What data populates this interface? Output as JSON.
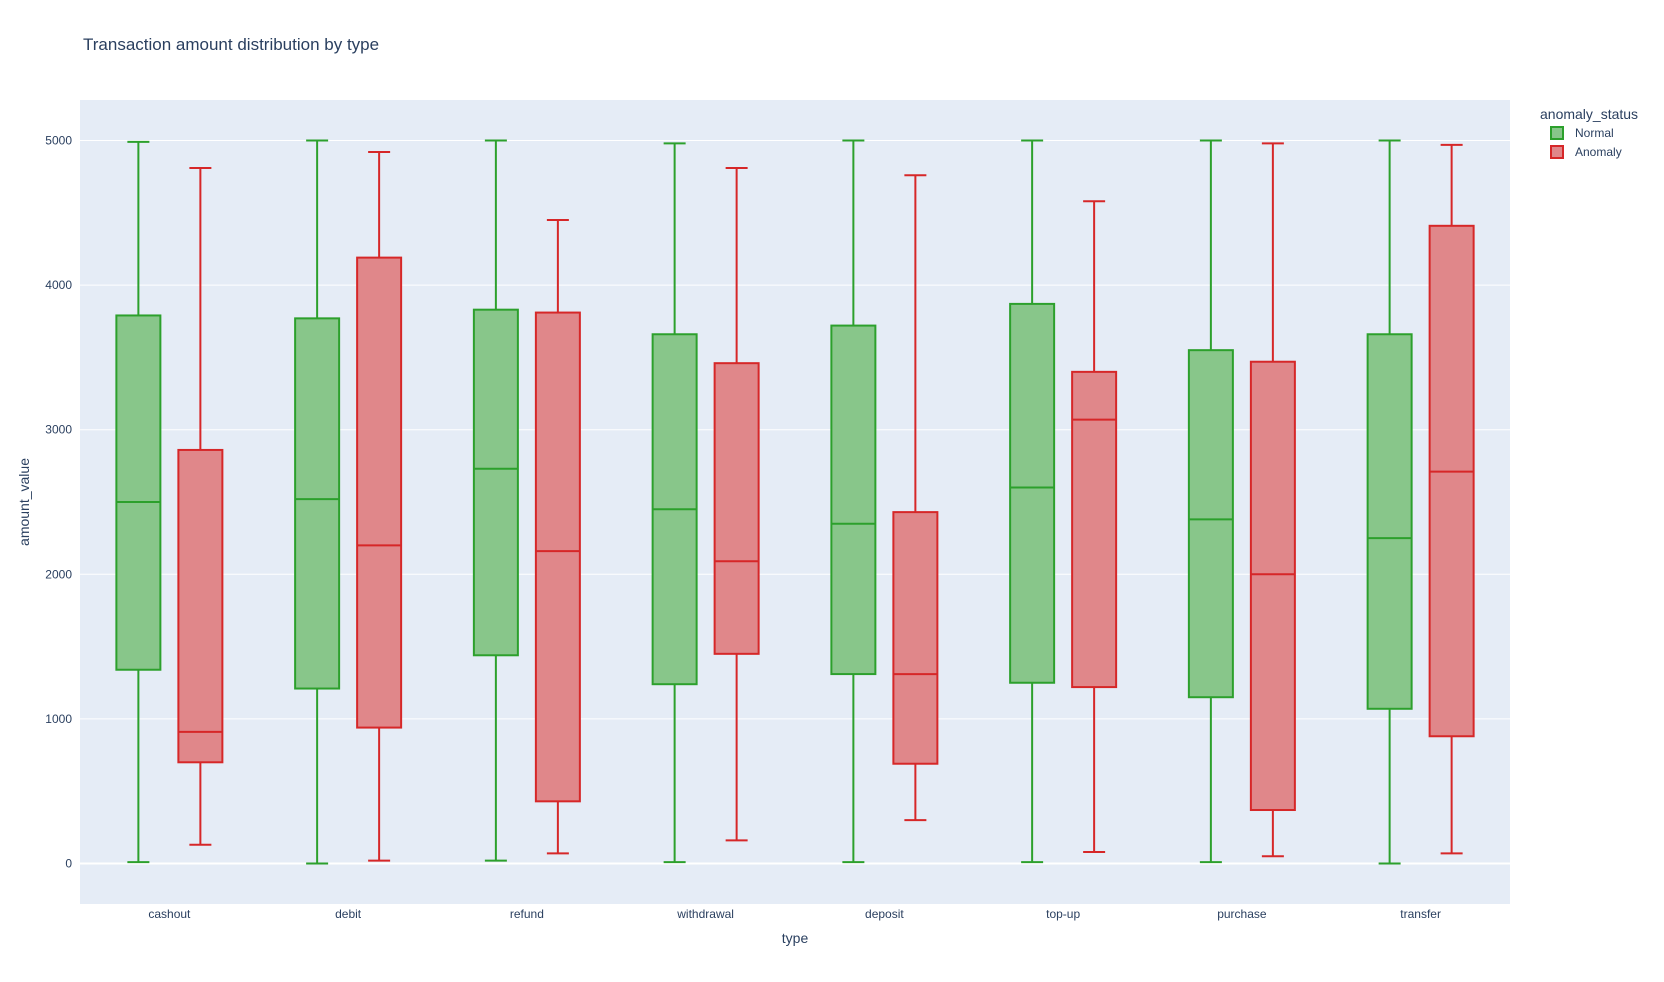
{
  "chart_data": {
    "type": "box",
    "title": "Transaction amount distribution by type",
    "xlabel": "type",
    "ylabel": "amount_value",
    "ylim": [
      -280,
      5280
    ],
    "yticks": [
      0,
      1000,
      2000,
      3000,
      4000,
      5000
    ],
    "grid": true,
    "legend": {
      "title": "anomaly_status",
      "position": "top-right"
    },
    "categories": [
      "cashout",
      "debit",
      "refund",
      "withdrawal",
      "deposit",
      "top-up",
      "purchase",
      "transfer"
    ],
    "series": [
      {
        "name": "Normal",
        "line_color": "#2ca02c",
        "fill_color": "#88c68a",
        "boxes": [
          {
            "min": 10,
            "q1": 1340,
            "median": 2500,
            "q3": 3790,
            "max": 4990
          },
          {
            "min": 0,
            "q1": 1210,
            "median": 2520,
            "q3": 3770,
            "max": 5000
          },
          {
            "min": 20,
            "q1": 1440,
            "median": 2730,
            "q3": 3830,
            "max": 5000
          },
          {
            "min": 10,
            "q1": 1240,
            "median": 2450,
            "q3": 3660,
            "max": 4980
          },
          {
            "min": 10,
            "q1": 1310,
            "median": 2350,
            "q3": 3720,
            "max": 5000
          },
          {
            "min": 10,
            "q1": 1250,
            "median": 2600,
            "q3": 3870,
            "max": 5000
          },
          {
            "min": 10,
            "q1": 1150,
            "median": 2380,
            "q3": 3550,
            "max": 5000
          },
          {
            "min": 0,
            "q1": 1070,
            "median": 2250,
            "q3": 3660,
            "max": 5000
          }
        ]
      },
      {
        "name": "Anomaly",
        "line_color": "#d62728",
        "fill_color": "#e0878a",
        "boxes": [
          {
            "min": 130,
            "q1": 700,
            "median": 910,
            "q3": 2860,
            "max": 4810
          },
          {
            "min": 20,
            "q1": 940,
            "median": 2200,
            "q3": 4190,
            "max": 4920
          },
          {
            "min": 70,
            "q1": 430,
            "median": 2160,
            "q3": 3810,
            "max": 4450
          },
          {
            "min": 160,
            "q1": 1450,
            "median": 2090,
            "q3": 3460,
            "max": 4810
          },
          {
            "min": 300,
            "q1": 690,
            "median": 1310,
            "q3": 2430,
            "max": 4760
          },
          {
            "min": 80,
            "q1": 1220,
            "median": 3070,
            "q3": 3400,
            "max": 4580
          },
          {
            "min": 50,
            "q1": 370,
            "median": 2000,
            "q3": 3470,
            "max": 4980
          },
          {
            "min": 70,
            "q1": 880,
            "median": 2710,
            "q3": 4410,
            "max": 4970
          }
        ]
      }
    ]
  }
}
